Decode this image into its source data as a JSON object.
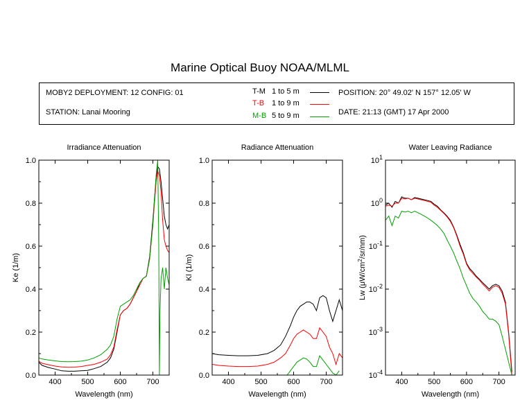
{
  "title": "Marine Optical Buoy NOAA/MLML",
  "info": {
    "deployment": "MOBY2 DEPLOYMENT: 12 CONFIG: 01",
    "station": "STATION: Lanai Mooring",
    "position": "POSITION: 20° 49.02' N   157° 12.05' W",
    "date": "DATE: 21:13 (GMT) 17 Apr 2000",
    "legend": [
      {
        "name": "T-M",
        "range": "1 to 5  m",
        "color": "#000000"
      },
      {
        "name": "T-B",
        "range": "1 to 9  m",
        "color": "#ff0000"
      },
      {
        "name": "M-B",
        "range": "5 to 9  m",
        "color": "#00a000"
      }
    ]
  },
  "chart_data": [
    {
      "type": "line",
      "title": "Irradiance Attenuation",
      "xlabel": "Wavelength (nm)",
      "ylabel": "Ke  (1/m)",
      "xlim": [
        350,
        750
      ],
      "ylim": [
        0,
        1.0
      ],
      "xticks": [
        400,
        500,
        600,
        700
      ],
      "yticks": [
        0.0,
        0.2,
        0.4,
        0.6,
        0.8,
        1.0
      ],
      "ytick_labels": [
        "0.0",
        "0.2",
        "0.4",
        "0.6",
        "0.8",
        "1.0"
      ],
      "series": [
        {
          "name": "T-M",
          "color": "#000000",
          "x": [
            350,
            360,
            380,
            400,
            420,
            440,
            460,
            480,
            500,
            520,
            540,
            560,
            570,
            580,
            590,
            600,
            610,
            620,
            630,
            640,
            650,
            660,
            670,
            680,
            690,
            700,
            705,
            710,
            715,
            720,
            725,
            730,
            735,
            740,
            745,
            750
          ],
          "y": [
            0.06,
            0.045,
            0.035,
            0.028,
            0.02,
            0.018,
            0.018,
            0.02,
            0.022,
            0.03,
            0.04,
            0.06,
            0.08,
            0.12,
            0.2,
            0.28,
            0.3,
            0.31,
            0.33,
            0.36,
            0.39,
            0.43,
            0.45,
            0.46,
            0.55,
            0.72,
            0.82,
            0.92,
            0.97,
            0.96,
            0.9,
            0.82,
            0.74,
            0.7,
            0.68,
            0.7
          ]
        },
        {
          "name": "T-B",
          "color": "#ff0000",
          "x": [
            350,
            360,
            380,
            400,
            420,
            440,
            460,
            480,
            500,
            520,
            540,
            560,
            570,
            580,
            590,
            600,
            610,
            620,
            630,
            640,
            650,
            660,
            670,
            680,
            690,
            700,
            705,
            710,
            715,
            720,
            725,
            730,
            735,
            740,
            745,
            750
          ],
          "y": [
            0.065,
            0.055,
            0.048,
            0.042,
            0.038,
            0.036,
            0.037,
            0.04,
            0.045,
            0.05,
            0.06,
            0.075,
            0.095,
            0.13,
            0.21,
            0.28,
            0.3,
            0.31,
            0.33,
            0.36,
            0.39,
            0.42,
            0.45,
            0.46,
            0.54,
            0.7,
            0.8,
            0.9,
            0.95,
            0.93,
            0.85,
            0.72,
            0.63,
            0.6,
            0.58,
            0.57
          ]
        },
        {
          "name": "M-B",
          "color": "#00a000",
          "x": [
            350,
            360,
            380,
            400,
            420,
            440,
            460,
            480,
            500,
            520,
            540,
            560,
            570,
            580,
            590,
            600,
            610,
            620,
            630,
            640,
            650,
            660,
            670,
            680,
            690,
            700,
            705,
            710,
            715,
            718,
            720,
            722,
            725,
            730,
            735,
            740,
            745,
            750
          ],
          "y": [
            0.08,
            0.075,
            0.07,
            0.066,
            0.063,
            0.062,
            0.063,
            0.065,
            0.07,
            0.08,
            0.095,
            0.12,
            0.14,
            0.18,
            0.26,
            0.32,
            0.33,
            0.34,
            0.35,
            0.37,
            0.4,
            0.43,
            0.45,
            0.46,
            0.54,
            0.7,
            0.82,
            0.93,
            1.0,
            0.6,
            0.0,
            0.3,
            0.45,
            0.5,
            0.4,
            0.5,
            0.45,
            0.42
          ]
        }
      ]
    },
    {
      "type": "line",
      "title": "Radiance Attenuation",
      "xlabel": "Wavelength (nm)",
      "ylabel": "Kl  (1/m)",
      "xlim": [
        350,
        750
      ],
      "ylim": [
        0,
        1.0
      ],
      "xticks": [
        400,
        500,
        600,
        700
      ],
      "yticks": [
        0.0,
        0.2,
        0.4,
        0.6,
        0.8,
        1.0
      ],
      "ytick_labels": [
        "0.0",
        "0.2",
        "0.4",
        "0.6",
        "0.8",
        "1.0"
      ],
      "series": [
        {
          "name": "T-M",
          "color": "#000000",
          "x": [
            350,
            370,
            400,
            430,
            460,
            490,
            520,
            540,
            560,
            575,
            590,
            600,
            610,
            620,
            630,
            640,
            650,
            660,
            670,
            680,
            690,
            700,
            710,
            720,
            730,
            740,
            750
          ],
          "y": [
            0.1,
            0.095,
            0.092,
            0.09,
            0.09,
            0.092,
            0.1,
            0.115,
            0.14,
            0.18,
            0.23,
            0.27,
            0.3,
            0.32,
            0.33,
            0.34,
            0.34,
            0.33,
            0.3,
            0.36,
            0.37,
            0.36,
            0.3,
            0.25,
            0.3,
            0.35,
            0.3
          ]
        },
        {
          "name": "T-B",
          "color": "#ff0000",
          "x": [
            350,
            370,
            400,
            430,
            460,
            490,
            520,
            540,
            560,
            575,
            590,
            600,
            610,
            620,
            630,
            640,
            650,
            660,
            670,
            680,
            690,
            700,
            710,
            720,
            730,
            740,
            750
          ],
          "y": [
            0.05,
            0.045,
            0.042,
            0.04,
            0.04,
            0.042,
            0.05,
            0.06,
            0.08,
            0.1,
            0.14,
            0.17,
            0.19,
            0.2,
            0.21,
            0.2,
            0.19,
            0.17,
            0.17,
            0.22,
            0.2,
            0.18,
            0.13,
            0.1,
            0.05,
            0.1,
            0.08
          ]
        },
        {
          "name": "M-B",
          "color": "#00a000",
          "x": [
            580,
            590,
            600,
            610,
            620,
            630,
            640,
            650,
            660,
            670,
            680,
            690,
            700,
            710,
            720,
            730,
            740
          ],
          "y": [
            0.0,
            0.02,
            0.04,
            0.06,
            0.07,
            0.08,
            0.075,
            0.06,
            0.04,
            0.04,
            0.09,
            0.07,
            0.05,
            0.03,
            0.01,
            0.0,
            0.02
          ]
        }
      ]
    },
    {
      "type": "line",
      "title": "Water Leaving Radiance",
      "xlabel": "Wavelength (nm)",
      "ylabel": "Lw  (μW/cm²/sr/nm)",
      "log_y": true,
      "xlim": [
        350,
        750
      ],
      "ylim": [
        0.0001,
        10
      ],
      "xticks": [
        400,
        500,
        600,
        700
      ],
      "yticks": [
        10,
        1,
        0.1,
        0.01,
        0.001,
        0.0001
      ],
      "ytick_labels": [
        "10^1",
        "10^0",
        "10^-1",
        "10^-2",
        "10^-3",
        "10^-4"
      ],
      "series": [
        {
          "name": "T-M",
          "color": "#000000",
          "x": [
            350,
            360,
            370,
            380,
            390,
            400,
            410,
            420,
            430,
            440,
            450,
            460,
            470,
            480,
            490,
            500,
            510,
            520,
            530,
            540,
            550,
            560,
            570,
            580,
            590,
            600,
            610,
            620,
            630,
            640,
            650,
            660,
            670,
            680,
            690,
            700,
            710,
            720,
            730,
            740
          ],
          "y": [
            0.9,
            1.0,
            0.8,
            1.1,
            1.0,
            1.4,
            1.3,
            1.3,
            1.2,
            1.35,
            1.3,
            1.25,
            1.2,
            1.15,
            1.1,
            0.95,
            0.85,
            0.7,
            0.6,
            0.5,
            0.4,
            0.28,
            0.18,
            0.11,
            0.07,
            0.04,
            0.03,
            0.025,
            0.02,
            0.017,
            0.014,
            0.012,
            0.01,
            0.012,
            0.013,
            0.012,
            0.009,
            0.005,
            0.001,
            0.00012
          ]
        },
        {
          "name": "T-B",
          "color": "#ff0000",
          "x": [
            350,
            360,
            370,
            380,
            390,
            400,
            410,
            420,
            430,
            440,
            450,
            460,
            470,
            480,
            490,
            500,
            510,
            520,
            530,
            540,
            550,
            560,
            570,
            580,
            590,
            600,
            610,
            620,
            630,
            640,
            650,
            660,
            670,
            680,
            690,
            700,
            710,
            720,
            730,
            740
          ],
          "y": [
            0.85,
            0.9,
            0.85,
            1.0,
            1.0,
            1.3,
            1.25,
            1.3,
            1.2,
            1.3,
            1.25,
            1.2,
            1.15,
            1.1,
            1.05,
            0.9,
            0.8,
            0.68,
            0.58,
            0.48,
            0.38,
            0.27,
            0.17,
            0.1,
            0.065,
            0.038,
            0.028,
            0.023,
            0.019,
            0.016,
            0.013,
            0.011,
            0.009,
            0.011,
            0.012,
            0.011,
            0.008,
            0.0045,
            0.0009,
            0.0001
          ]
        },
        {
          "name": "M-B",
          "color": "#00a000",
          "x": [
            350,
            360,
            370,
            380,
            390,
            400,
            410,
            420,
            430,
            440,
            450,
            460,
            470,
            480,
            490,
            500,
            510,
            520,
            530,
            540,
            550,
            560,
            570,
            580,
            590,
            600,
            610,
            620,
            630,
            640,
            650,
            660,
            670,
            680,
            690,
            700,
            710,
            720,
            730,
            740
          ],
          "y": [
            0.4,
            0.5,
            0.3,
            0.5,
            0.45,
            0.65,
            0.62,
            0.65,
            0.6,
            0.65,
            0.6,
            0.55,
            0.5,
            0.45,
            0.4,
            0.35,
            0.3,
            0.25,
            0.2,
            0.14,
            0.1,
            0.07,
            0.045,
            0.03,
            0.018,
            0.012,
            0.008,
            0.006,
            0.005,
            0.004,
            0.003,
            0.0025,
            0.002,
            0.002,
            0.0018,
            0.0015,
            0.0008,
            0.0004,
            0.0002,
            0.0001
          ]
        }
      ]
    }
  ]
}
